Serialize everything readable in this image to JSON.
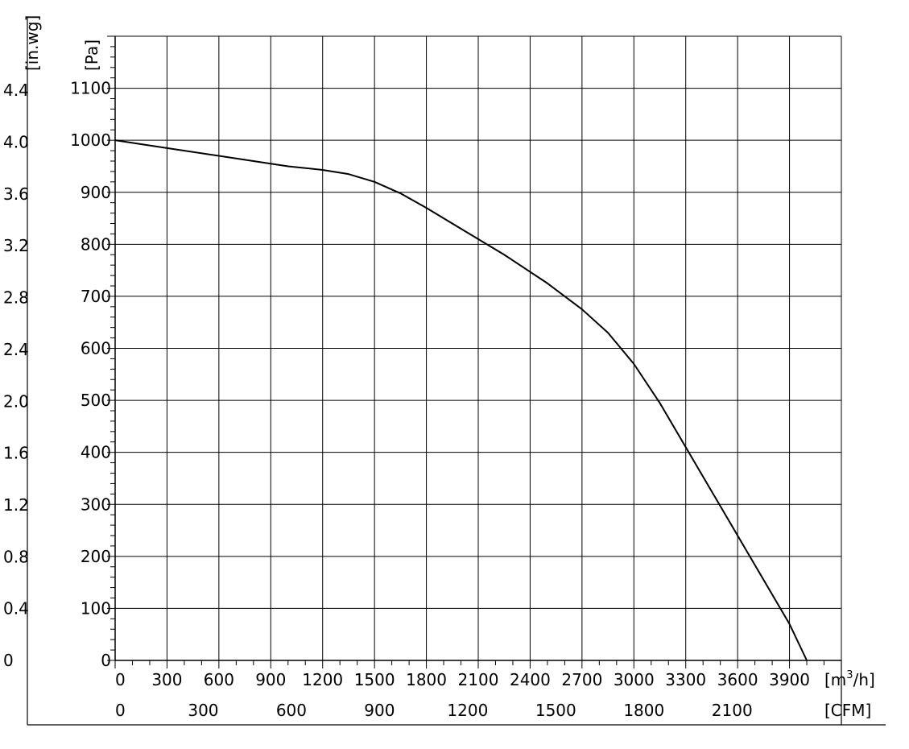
{
  "chart_data": {
    "type": "line",
    "grid": true,
    "x_unit_primary_base": "[m",
    "x_unit_primary_sup": "3",
    "x_unit_primary_end": "/h]",
    "x_unit_secondary": "[CFM]",
    "y_unit_primary": "[Pa]",
    "y_unit_secondary": "[in.wg]",
    "xlim": [
      0,
      4200
    ],
    "ylim": [
      0,
      1200
    ],
    "x_ticks": [
      "0",
      "300",
      "600",
      "900",
      "1200",
      "1500",
      "1800",
      "2100",
      "2400",
      "2700",
      "3000",
      "3300",
      "3600",
      "3900"
    ],
    "x_ticks_secondary": [
      "0",
      "300",
      "600",
      "900",
      "1200",
      "1500",
      "1800",
      "2100"
    ],
    "y_ticks": [
      "0",
      "100",
      "200",
      "300",
      "400",
      "500",
      "600",
      "700",
      "800",
      "900",
      "1000",
      "1100"
    ],
    "y_ticks_secondary": [
      "0",
      "0.4",
      "0.8",
      "1.2",
      "1.6",
      "2.0",
      "2.4",
      "2.8",
      "3.2",
      "3.6",
      "4.0",
      "4.4"
    ],
    "series": [
      {
        "x": [
          0,
          300,
          600,
          900,
          1000,
          1200,
          1350,
          1500,
          1650,
          1800,
          2000,
          2250,
          2500,
          2700,
          2850,
          3000,
          3150,
          3300,
          3450,
          3600,
          3750,
          3900,
          4000
        ],
        "y": [
          1000,
          985,
          970,
          955,
          950,
          943,
          935,
          920,
          898,
          870,
          830,
          780,
          725,
          675,
          630,
          570,
          495,
          410,
          325,
          240,
          155,
          70,
          0
        ]
      }
    ]
  }
}
